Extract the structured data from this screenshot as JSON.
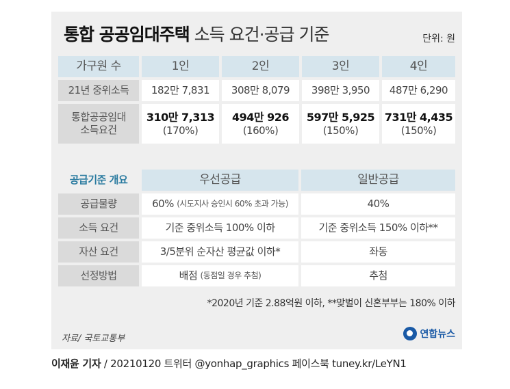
{
  "title": {
    "bold": "통합 공공임대주택",
    "rest": "소득 요건·공급 기준"
  },
  "unit": "단위: 원",
  "table1": {
    "header": [
      "가구원 수",
      "1인",
      "2인",
      "3인",
      "4인"
    ],
    "median_income": {
      "label": "21년 중위소득",
      "values": [
        "182만 7,831",
        "308만 8,079",
        "398만 3,950",
        "487만 6,290"
      ]
    },
    "requirement": {
      "label_line1": "통합공공임대",
      "label_line2": "소득요건",
      "values": [
        "310만 7,313",
        "494만 926",
        "597만 5,925",
        "731만 4,435"
      ],
      "percents": [
        "(170%)",
        "(160%)",
        "(150%)",
        "(150%)"
      ]
    }
  },
  "table2": {
    "header": [
      "공급기준 개요",
      "우선공급",
      "일반공급"
    ],
    "rows": [
      {
        "label": "공급물량",
        "priority_main": "60%",
        "priority_sub": "(시도지사 승인시 60% 초과 가능)",
        "general_main": "40%",
        "general_sub": ""
      },
      {
        "label": "소득 요건",
        "priority_main": "기준 중위소득 100% 이하",
        "priority_sub": "",
        "general_main": "기준 중위소득 150% 이하**",
        "general_sub": ""
      },
      {
        "label": "자산 요건",
        "priority_main": "3/5분위 순자산 평균값 이하*",
        "priority_sub": "",
        "general_main": "좌동",
        "general_sub": ""
      },
      {
        "label": "선정방법",
        "priority_main": "배점",
        "priority_sub": "(동점일 경우 추첨)",
        "general_main": "추첨",
        "general_sub": ""
      }
    ]
  },
  "footnote": "*2020년 기준 2.88억원 이하, **맞벌이 신혼부부는 180% 이하",
  "source": "자료/ 국토교통부",
  "logo": {
    "text": "연합뉴스",
    "icon": "yonhap-logo-icon"
  },
  "credit": {
    "author": "이재윤 기자",
    "rest": "/ 20210120  트위터 @yonhap_graphics  페이스북 tuney.kr/LeYN1"
  },
  "colors": {
    "panel": "#efefef",
    "header": "#d6e5ed",
    "label": "#dadada",
    "accent": "#2a7ba0",
    "logo": "#1a5aa6"
  }
}
